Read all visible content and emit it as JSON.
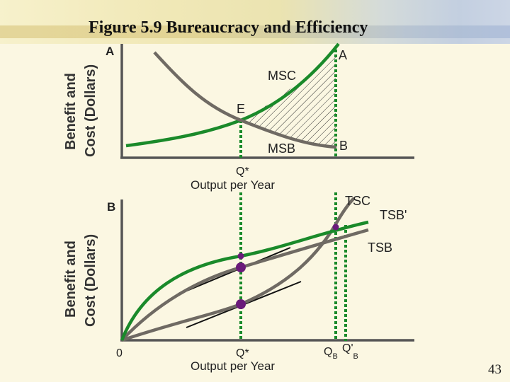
{
  "title": "Figure 5.9 Bureaucracy and Efficiency",
  "page_number": "43",
  "colors": {
    "green": "#1a8a2a",
    "gray": "#6f6a63",
    "purple": "#6a1a7a",
    "dotted": "#1a8a2a"
  },
  "chart_data": [
    {
      "type": "line",
      "panel_label": "A",
      "ylabel": "Benefit and Cost (Dollars)",
      "xlabel": "Output per Year",
      "tick_label_x": "Q*",
      "series": [
        {
          "name": "MSC",
          "x": [
            0,
            0.3,
            0.55,
            0.8,
            1.0
          ],
          "y": [
            0.35,
            0.6,
            0.92,
            1.5,
            2.05
          ]
        },
        {
          "name": "MSB",
          "x": [
            0.2,
            0.45,
            0.55,
            0.75,
            1.0
          ],
          "y": [
            2.3,
            1.2,
            0.92,
            0.55,
            0.35
          ]
        }
      ],
      "points": [
        {
          "label": "E",
          "x": 0.55,
          "y": 0.92
        },
        {
          "label": "A",
          "x": 1.0,
          "y": 2.05
        },
        {
          "label": "B",
          "x": 1.0,
          "y": 0.35
        }
      ]
    },
    {
      "type": "line",
      "panel_label": "B",
      "ylabel": "Benefit and Cost (Dollars)",
      "xlabel": "Output per Year",
      "origin_label": "0",
      "tick_label_x": "Q*",
      "tick_label_qb": "QB",
      "tick_label_qb_prime": "Q'B",
      "series": [
        {
          "name": "TSC",
          "x": [
            0,
            0.2,
            0.55,
            0.8,
            1.0
          ],
          "y": [
            0,
            0.35,
            1.0,
            1.6,
            2.3
          ]
        },
        {
          "name": "TSB'",
          "x": [
            0,
            0.15,
            0.55,
            0.9,
            1.05
          ],
          "y": [
            0,
            0.9,
            1.9,
            2.4,
            2.5
          ]
        },
        {
          "name": "TSB",
          "x": [
            0,
            0.25,
            0.55,
            0.85,
            1.05
          ],
          "y": [
            0,
            0.6,
            1.3,
            2.0,
            2.15
          ]
        }
      ]
    }
  ],
  "curve_labels": {
    "msc": "MSC",
    "msb": "MSB",
    "point_e": "E",
    "point_a": "A",
    "point_b": "B",
    "tsc": "TSC",
    "tsb_prime": "TSB'",
    "tsb": "TSB"
  },
  "panel_a": {
    "label": "A",
    "ylabel_line1": "Benefit and",
    "ylabel_line2": "Cost (Dollars)",
    "q_star": "Q*",
    "xlabel": "Output per Year"
  },
  "panel_b": {
    "label": "B",
    "ylabel_line1": "Benefit and",
    "ylabel_line2": "Cost (Dollars)",
    "origin": "0",
    "q_star": "Q*",
    "xlabel": "Output per Year",
    "qb": "Q",
    "qb_sub": "B",
    "qbp": "Q'",
    "qbp_sub": "B"
  }
}
